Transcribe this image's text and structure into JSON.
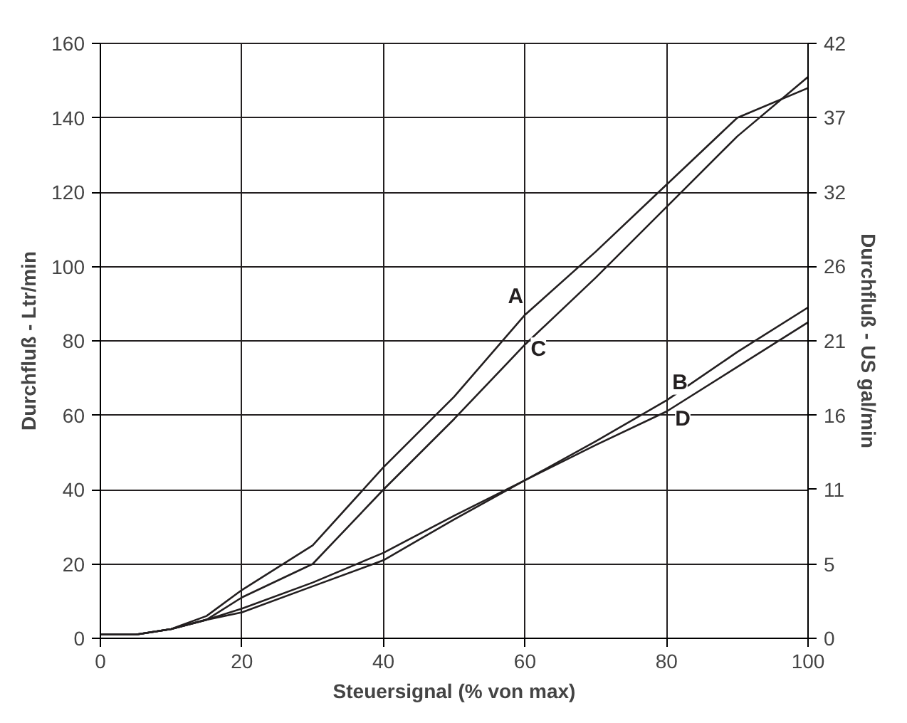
{
  "chart_data": {
    "type": "line",
    "xlabel": "Steuersignal (% von max)",
    "ylabel": "Durchfluß - Ltr/min",
    "y2label": "Durchfluß - US gal/min",
    "x": [
      0,
      5,
      10,
      15,
      20,
      30,
      40,
      50,
      60,
      70,
      80,
      90,
      100
    ],
    "series": [
      {
        "name": "A",
        "color": "#231f20",
        "values": [
          1,
          1,
          2.5,
          6,
          13,
          25,
          46,
          65,
          87,
          104,
          122,
          140,
          148
        ]
      },
      {
        "name": "B",
        "color": "#231f20",
        "values": [
          1,
          1,
          2.5,
          5,
          8,
          15,
          23,
          33,
          42.5,
          53,
          64,
          77,
          89
        ]
      },
      {
        "name": "C",
        "color": "#231f20",
        "values": [
          1,
          1,
          2.5,
          5,
          11,
          20,
          40,
          59,
          79,
          97,
          116,
          135,
          151
        ]
      },
      {
        "name": "D",
        "color": "#231f20",
        "values": [
          1,
          1,
          2.5,
          5,
          7,
          14,
          21,
          32,
          42.5,
          52,
          61,
          73,
          85
        ]
      }
    ],
    "xlim": [
      0,
      100
    ],
    "xticks": [
      0,
      20,
      40,
      60,
      80,
      100
    ],
    "ylim": [
      0,
      160
    ],
    "yticks": [
      0,
      20,
      40,
      60,
      80,
      100,
      120,
      140,
      160
    ],
    "y2lim": [
      0,
      42.27
    ],
    "y2ticks": [
      {
        "value": 0,
        "label": "0"
      },
      {
        "value": 5.28,
        "label": "5"
      },
      {
        "value": 10.57,
        "label": "11"
      },
      {
        "value": 15.85,
        "label": "16"
      },
      {
        "value": 21.14,
        "label": "21"
      },
      {
        "value": 26.42,
        "label": "26"
      },
      {
        "value": 31.7,
        "label": "32"
      },
      {
        "value": 36.99,
        "label": "37"
      },
      {
        "value": 42.27,
        "label": "42"
      }
    ],
    "grid": true,
    "marker": "none",
    "line_style": "solid"
  }
}
